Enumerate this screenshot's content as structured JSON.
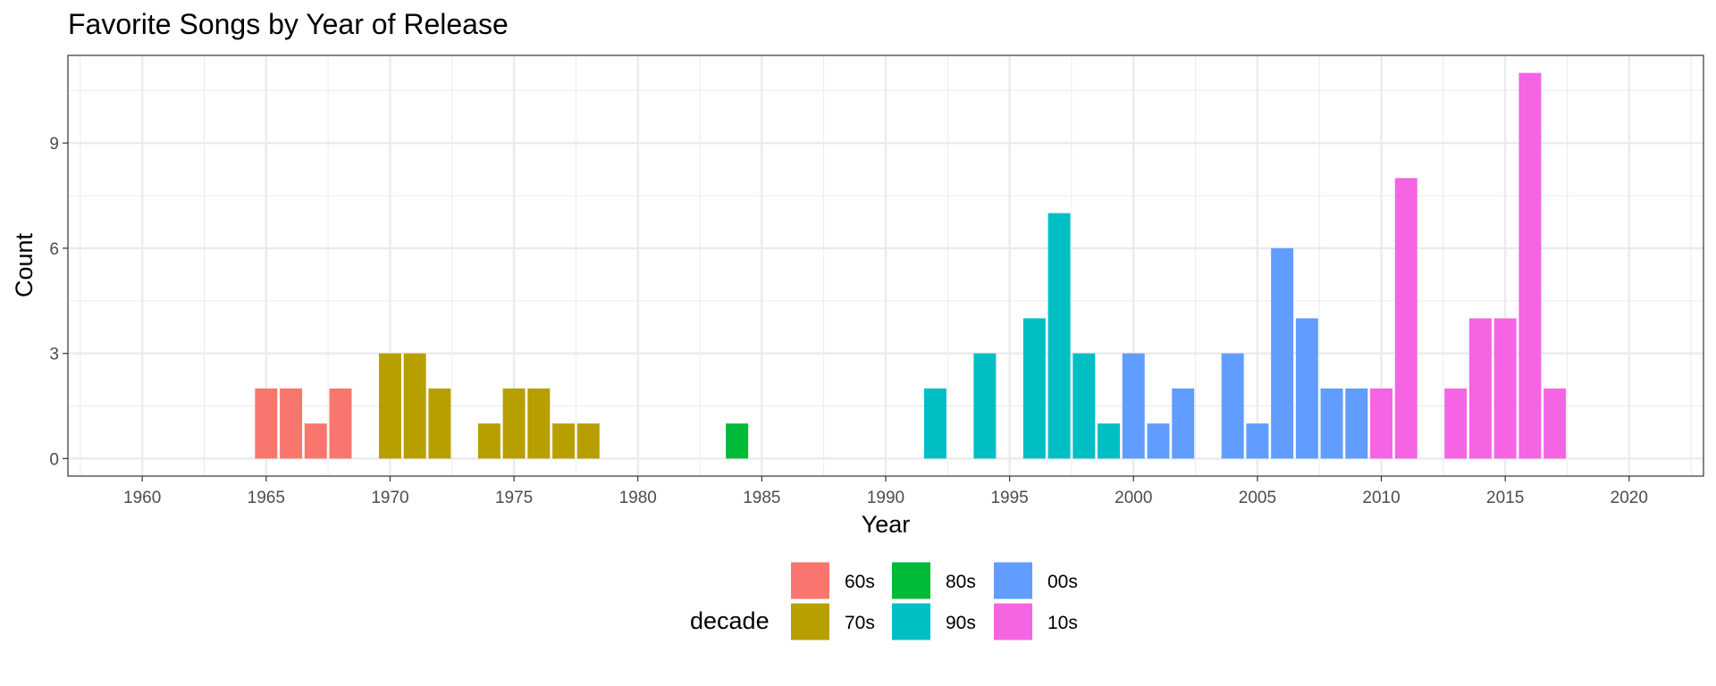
{
  "chart_data": {
    "type": "bar",
    "title": "Favorite Songs by Year of Release",
    "xlabel": "Year",
    "ylabel": "Count",
    "xlim": [
      1957,
      2023
    ],
    "ylim": [
      -0.5,
      11.5
    ],
    "x_ticks": [
      "1960",
      "1965",
      "1970",
      "1975",
      "1980",
      "1985",
      "1990",
      "1995",
      "2000",
      "2005",
      "2010",
      "2015",
      "2020"
    ],
    "y_ticks": [
      "0",
      "3",
      "6",
      "9"
    ],
    "grid": true,
    "legend": {
      "title": "decade",
      "placement": "bottom",
      "entries": [
        {
          "label": "60s",
          "color": "#F8766D"
        },
        {
          "label": "70s",
          "color": "#B79F00"
        },
        {
          "label": "80s",
          "color": "#00BA38"
        },
        {
          "label": "90s",
          "color": "#00BFC4"
        },
        {
          "label": "00s",
          "color": "#619CFF"
        },
        {
          "label": "10s",
          "color": "#F564E3"
        }
      ]
    },
    "series": [
      {
        "name": "60s",
        "x": [
          1965,
          1966,
          1967,
          1968
        ],
        "values": [
          2,
          2,
          1,
          2
        ]
      },
      {
        "name": "70s",
        "x": [
          1970,
          1971,
          1972,
          1974,
          1975,
          1976,
          1977,
          1978
        ],
        "values": [
          3,
          3,
          2,
          1,
          2,
          2,
          1,
          1
        ]
      },
      {
        "name": "80s",
        "x": [
          1984
        ],
        "values": [
          1
        ]
      },
      {
        "name": "90s",
        "x": [
          1992,
          1994,
          1996,
          1997,
          1998,
          1999
        ],
        "values": [
          2,
          3,
          4,
          7,
          3,
          1
        ]
      },
      {
        "name": "00s",
        "x": [
          2000,
          2001,
          2002,
          2004,
          2005,
          2006,
          2007,
          2008,
          2009
        ],
        "values": [
          3,
          1,
          2,
          3,
          1,
          6,
          4,
          2,
          2
        ]
      },
      {
        "name": "10s",
        "x": [
          2010,
          2011,
          2013,
          2014,
          2015,
          2016,
          2017
        ],
        "values": [
          2,
          8,
          2,
          4,
          4,
          11,
          2
        ]
      }
    ]
  }
}
